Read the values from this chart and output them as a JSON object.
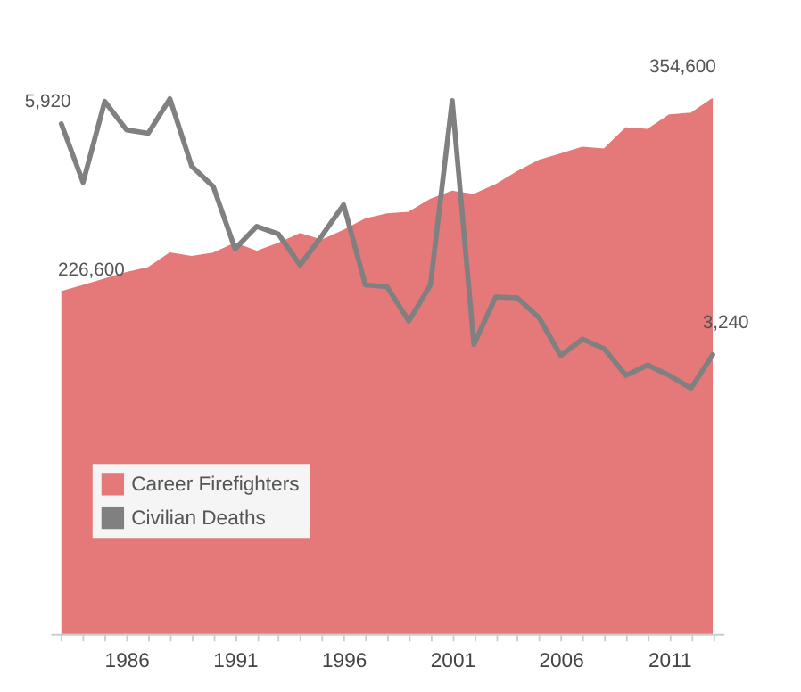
{
  "chart_data": {
    "type": "area",
    "x": [
      1983,
      1984,
      1985,
      1986,
      1987,
      1988,
      1989,
      1990,
      1991,
      1992,
      1993,
      1994,
      1995,
      1996,
      1997,
      1998,
      1999,
      2000,
      2001,
      2002,
      2003,
      2004,
      2005,
      2006,
      2007,
      2008,
      2009,
      2010,
      2011,
      2012,
      2013
    ],
    "series": [
      {
        "name": "Career Firefighters",
        "color": "#e57878",
        "values": [
          226600,
          230700,
          235000,
          239300,
          242500,
          252200,
          250000,
          252200,
          258700,
          253300,
          258700,
          265100,
          260800,
          267300,
          274800,
          278100,
          279200,
          287800,
          293200,
          291000,
          297500,
          306100,
          313600,
          317900,
          322300,
          321200,
          335200,
          334100,
          343800,
          344900,
          354600
        ],
        "value_labels": [
          "226,600",
          null,
          null,
          null,
          null,
          null,
          null,
          null,
          null,
          null,
          null,
          null,
          null,
          null,
          null,
          null,
          null,
          null,
          null,
          null,
          null,
          null,
          null,
          null,
          null,
          null,
          null,
          null,
          null,
          null,
          "354,600"
        ]
      },
      {
        "name": "Civilian Deaths",
        "type": "line",
        "axis": "y2",
        "color": "#808080",
        "values": [
          5920,
          5240,
          6180,
          5850,
          5810,
          6210,
          5430,
          5190,
          4470,
          4730,
          4640,
          4280,
          4620,
          4980,
          4050,
          4030,
          3630,
          4050,
          6190,
          3360,
          3910,
          3900,
          3670,
          3230,
          3420,
          3310,
          3000,
          3120,
          3000,
          2850,
          3240
        ],
        "value_labels": [
          "5,920",
          null,
          null,
          null,
          null,
          null,
          null,
          null,
          null,
          null,
          null,
          null,
          null,
          null,
          null,
          null,
          null,
          null,
          null,
          null,
          null,
          null,
          null,
          null,
          null,
          null,
          null,
          null,
          null,
          null,
          "3,240"
        ]
      }
    ],
    "xlim": [
      1982.5,
      2013.5
    ],
    "xticks": [
      {
        "value": 1983,
        "label": null
      },
      {
        "value": 1984,
        "label": null
      },
      {
        "value": 1985,
        "label": null
      },
      1986,
      {
        "value": 1987,
        "label": null
      },
      {
        "value": 1988,
        "label": null
      },
      {
        "value": 1989,
        "label": null
      },
      {
        "value": 1990,
        "label": null
      },
      1991,
      {
        "value": 1992,
        "label": null
      },
      {
        "value": 1993,
        "label": null
      },
      {
        "value": 1994,
        "label": null
      },
      {
        "value": 1995,
        "label": null
      },
      1996,
      {
        "value": 1997,
        "label": null
      },
      {
        "value": 1998,
        "label": null
      },
      {
        "value": 1999,
        "label": null
      },
      {
        "value": 2000,
        "label": null
      },
      2001,
      {
        "value": 2002,
        "label": null
      },
      {
        "value": 2003,
        "label": null
      },
      {
        "value": 2004,
        "label": null
      },
      {
        "value": 2005,
        "label": null
      },
      2006,
      {
        "value": 2007,
        "label": null
      },
      {
        "value": 2008,
        "label": null
      },
      {
        "value": 2009,
        "label": null
      },
      {
        "value": 2010,
        "label": null
      },
      2011,
      {
        "value": 2012,
        "label": null
      },
      {
        "value": 2013,
        "label": null
      }
    ],
    "tick_labels": "x",
    "grid": false,
    "legend": "bottom left",
    "line_style": "solid",
    "marker": "none"
  }
}
